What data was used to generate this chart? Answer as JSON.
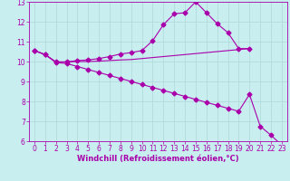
{
  "bg_color": "#c8eef0",
  "grid_color": "#b0d8d8",
  "line_color": "#aa00aa",
  "xlabel": "Windchill (Refroidissement éolien,°C)",
  "xlim": [
    -0.5,
    23.5
  ],
  "ylim": [
    6,
    13
  ],
  "xticks": [
    0,
    1,
    2,
    3,
    4,
    5,
    6,
    7,
    8,
    9,
    10,
    11,
    12,
    13,
    14,
    15,
    16,
    17,
    18,
    19,
    20,
    21,
    22,
    23
  ],
  "yticks": [
    6,
    7,
    8,
    9,
    10,
    11,
    12,
    13
  ],
  "line1_x": [
    0,
    1,
    2,
    3,
    4,
    5,
    6,
    7,
    8,
    9,
    10,
    11,
    12,
    13,
    14,
    15,
    16,
    17,
    18,
    19,
    20
  ],
  "line1_y": [
    10.55,
    10.35,
    9.98,
    9.98,
    10.05,
    10.08,
    10.15,
    10.25,
    10.38,
    10.45,
    10.55,
    11.05,
    11.85,
    12.4,
    12.45,
    13.0,
    12.45,
    11.9,
    11.45,
    10.65,
    10.65
  ],
  "line2_x": [
    0,
    1,
    2,
    3,
    4,
    5,
    6,
    7,
    8,
    9,
    10,
    11,
    12,
    13,
    14,
    15,
    16,
    17,
    18,
    19,
    20
  ],
  "line2_y": [
    10.55,
    10.35,
    9.98,
    9.98,
    10.0,
    10.0,
    10.02,
    10.05,
    10.08,
    10.1,
    10.15,
    10.2,
    10.25,
    10.3,
    10.35,
    10.4,
    10.45,
    10.5,
    10.55,
    10.6,
    10.65
  ],
  "line3_x": [
    0,
    1,
    2,
    3,
    4,
    5,
    6,
    7,
    8,
    9,
    10,
    11,
    12,
    13,
    14,
    15,
    16,
    17,
    18,
    19,
    20,
    21,
    22,
    23
  ],
  "line3_y": [
    10.55,
    10.35,
    9.95,
    9.9,
    9.75,
    9.6,
    9.45,
    9.3,
    9.15,
    9.0,
    8.85,
    8.7,
    8.55,
    8.4,
    8.25,
    8.1,
    7.95,
    7.8,
    7.65,
    7.5,
    8.35,
    6.75,
    6.3,
    5.8
  ],
  "xlabel_fontsize": 6,
  "tick_fontsize": 5.5,
  "marker": "D",
  "markersize": 2.5,
  "linewidth": 0.8
}
